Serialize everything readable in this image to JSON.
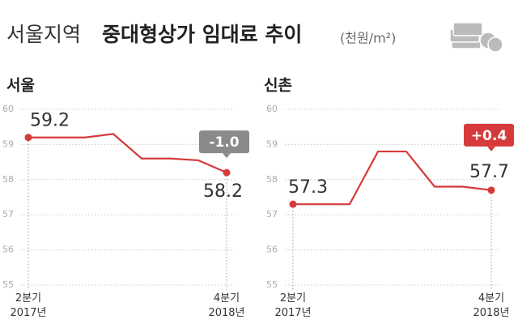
{
  "title": [
    "서울지역",
    "중대형상가 임대료 추이"
  ],
  "unit": "(천원/m²)",
  "chart_data": [
    {
      "type": "line",
      "title": "서울",
      "categories": [
        "2분기\n2017년",
        null,
        null,
        null,
        null,
        null,
        null,
        "4분기\n2018년"
      ],
      "values": [
        59.2,
        59.2,
        59.2,
        59.3,
        58.6,
        58.6,
        58.55,
        58.2
      ],
      "value_labels": [
        "59.2",
        null,
        null,
        null,
        null,
        null,
        null,
        "58.2"
      ],
      "change_label": "-1.0",
      "change_color": "#8a8a8a",
      "color": "#d63a3a",
      "ylim": [
        55,
        60
      ],
      "yticks": [
        55,
        56,
        57,
        58,
        59,
        60
      ],
      "grid": true
    },
    {
      "type": "line",
      "title": "신촌",
      "categories": [
        "2분기\n2017년",
        null,
        null,
        null,
        null,
        null,
        null,
        "4분기\n2018년"
      ],
      "values": [
        57.3,
        57.3,
        57.3,
        58.8,
        58.8,
        57.8,
        57.8,
        57.7
      ],
      "value_labels": [
        "57.3",
        null,
        null,
        null,
        null,
        null,
        null,
        "57.7"
      ],
      "change_label": "+0.4",
      "change_color": "#d63a3a",
      "color": "#d63a3a",
      "ylim": [
        55,
        60
      ],
      "yticks": [
        55,
        56,
        57,
        58,
        59,
        60
      ],
      "grid": true
    }
  ]
}
